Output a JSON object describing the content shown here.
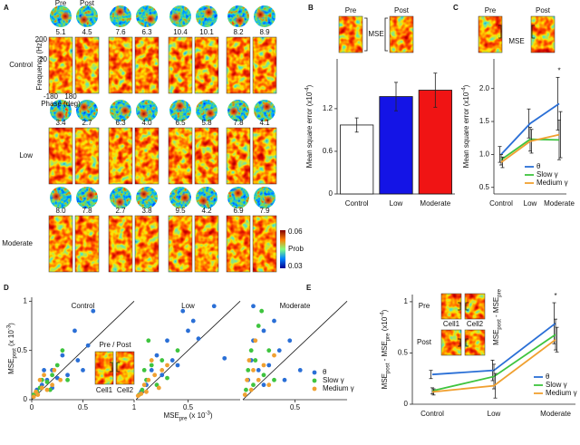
{
  "panel_labels": [
    "A",
    "B",
    "C",
    "D",
    "E"
  ],
  "panel_a": {
    "columns": [
      "Pre",
      "Post"
    ],
    "rows": [
      {
        "label": "Control",
        "values": [
          "5.1",
          "4.5",
          "7.6",
          "6.3",
          "10.4",
          "10.1",
          "8.2",
          "8.9"
        ]
      },
      {
        "label": "Low",
        "values": [
          "3.4",
          "2.7",
          "6.3",
          "4.0",
          "6.5",
          "5.8",
          "7.8",
          "4.1"
        ]
      },
      {
        "label": "Moderate",
        "values": [
          "8.0",
          "7.8",
          "2.7",
          "3.8",
          "9.5",
          "4.2",
          "6.9",
          "7.9"
        ]
      }
    ],
    "ylabel": "Frequency (Hz)",
    "yticks": [
      "200",
      "20"
    ],
    "xlabel": "Phase (deg)",
    "xticks": [
      "-180",
      "180"
    ],
    "colorbar": {
      "max": "0.06",
      "label": "Prob",
      "min": "0.03"
    }
  },
  "chart_data": [
    {
      "type": "bar",
      "categories": [
        "Control",
        "Low",
        "Moderate"
      ],
      "values": [
        0.97,
        1.37,
        1.46
      ],
      "errors": [
        0.1,
        0.2,
        0.24
      ],
      "colors": [
        "#ffffff",
        "#1414e6",
        "#f01414"
      ],
      "ylim": [
        0,
        1.9
      ],
      "yticks": [
        0,
        0.6,
        1.2
      ],
      "ylabel": [
        {
          "text": "Mean square error (x10"
        },
        {
          "sup": "-4"
        },
        {
          "text": ")"
        }
      ],
      "inset": {
        "labels": [
          "Pre",
          "Post"
        ],
        "bracket": "MSE"
      }
    },
    {
      "type": "line",
      "categories": [
        "Control",
        "Low",
        "Moderate"
      ],
      "series": [
        {
          "name": "θ",
          "color": "#2a6fd6",
          "values": [
            1.0,
            1.47,
            1.77
          ],
          "errors": [
            0.12,
            0.22,
            0.4
          ]
        },
        {
          "name": "Slow γ",
          "color": "#3ec43e",
          "values": [
            0.92,
            1.23,
            1.22
          ],
          "errors": [
            0.08,
            0.18,
            0.3
          ]
        },
        {
          "name": "Medium γ",
          "color": "#f0a030",
          "values": [
            0.88,
            1.2,
            1.3
          ],
          "errors": [
            0.08,
            0.18,
            0.35
          ]
        }
      ],
      "ylim": [
        0.4,
        2.45
      ],
      "yticks": [
        0.5,
        {
          "value": 1,
          "label": "1.0"
        },
        1.5,
        {
          "value": 2,
          "label": "2.0"
        }
      ],
      "ylabel": [
        {
          "text": "Mean square error (x10"
        },
        {
          "sup": "-4"
        },
        {
          "text": ")"
        }
      ],
      "annotation": "*",
      "legend": "lower right",
      "inset": {
        "labels": [
          "Pre",
          "Post"
        ],
        "bracket": "MSE"
      }
    },
    {
      "type": "scatter",
      "title": "Control",
      "series": [
        {
          "color": "#2a6fd6",
          "x": [
            0.05,
            0.1,
            0.15,
            0.2,
            0.25,
            0.3,
            0.35,
            0.45,
            0.5,
            0.6,
            0.42,
            0.85,
            0.55,
            0.2,
            0.12
          ],
          "values": [
            0.1,
            0.15,
            0.2,
            0.3,
            0.22,
            0.45,
            0.25,
            0.4,
            0.3,
            0.9,
            0.7,
            0.45,
            0.55,
            0.12,
            0.3
          ]
        },
        {
          "color": "#3ec43e",
          "x": [
            0.02,
            0.05,
            0.08,
            0.1,
            0.15,
            0.2,
            0.25,
            0.18,
            0.3,
            0.35
          ],
          "values": [
            0.05,
            0.08,
            0.12,
            0.2,
            0.18,
            0.25,
            0.35,
            0.1,
            0.5,
            0.2
          ]
        },
        {
          "color": "#f0a030",
          "x": [
            0.02,
            0.04,
            0.06,
            0.1,
            0.12,
            0.15,
            0.2,
            0.22,
            0.28,
            0.08
          ],
          "values": [
            0.03,
            0.08,
            0.05,
            0.12,
            0.25,
            0.1,
            0.15,
            0.3,
            0.2,
            0.2
          ]
        }
      ],
      "xlim": [
        0,
        1
      ],
      "ylim": [
        0,
        1.04
      ],
      "xticks": [
        0,
        0.5,
        1
      ],
      "yticks": [
        0,
        0.5,
        1
      ],
      "diagonal": true,
      "ylabel": [
        {
          "text": "MSE"
        },
        {
          "sub": "post"
        },
        {
          "text": " (x 10"
        },
        {
          "sup": "-3"
        },
        {
          "text": ")"
        }
      ],
      "inset": {
        "title": "Pre / Post",
        "labels": [
          "Cell1",
          "Cell2"
        ]
      }
    },
    {
      "type": "scatter",
      "title": "Low",
      "series": [
        {
          "color": "#2a6fd6",
          "x": [
            0.05,
            0.1,
            0.15,
            0.2,
            0.25,
            0.3,
            0.35,
            0.4,
            0.5,
            0.55,
            0.75,
            0.85,
            0.6,
            0.45
          ],
          "values": [
            0.08,
            0.15,
            0.3,
            0.45,
            0.25,
            0.6,
            0.4,
            0.35,
            0.7,
            0.8,
            0.95,
            0.42,
            0.62,
            0.9
          ]
        },
        {
          "color": "#3ec43e",
          "x": [
            0.03,
            0.06,
            0.1,
            0.15,
            0.2,
            0.25,
            0.3,
            0.12,
            0.4,
            0.08
          ],
          "values": [
            0.05,
            0.1,
            0.2,
            0.35,
            0.15,
            0.4,
            0.22,
            0.6,
            0.5,
            0.3
          ]
        },
        {
          "color": "#f0a030",
          "x": [
            0.02,
            0.05,
            0.08,
            0.1,
            0.12,
            0.18,
            0.22,
            0.25,
            0.3,
            0.15
          ],
          "values": [
            0.04,
            0.06,
            0.15,
            0.08,
            0.2,
            0.25,
            0.12,
            0.3,
            0.35,
            0.4
          ]
        }
      ],
      "xlim": [
        0,
        1
      ],
      "ylim": [
        0,
        1.04
      ],
      "xticks": [
        0.5
      ],
      "diagonal": true,
      "xlabel": [
        {
          "text": "MSE"
        },
        {
          "sub": "pre"
        },
        {
          "text": " (x 10"
        },
        {
          "sup": "-3"
        },
        {
          "text": ")"
        }
      ]
    },
    {
      "type": "scatter",
      "title": "Moderate",
      "series": [
        {
          "name": "θ",
          "color": "#2a6fd6",
          "x": [
            0.05,
            0.08,
            0.1,
            0.15,
            0.2,
            0.25,
            0.3,
            0.35,
            0.4,
            0.45,
            0.1,
            0.55,
            0.2
          ],
          "values": [
            0.2,
            0.4,
            0.6,
            0.3,
            0.7,
            0.35,
            0.8,
            0.5,
            0.2,
            0.6,
            0.95,
            0.3,
            0.15
          ]
        },
        {
          "name": "Slow γ",
          "color": "#3ec43e",
          "x": [
            0.03,
            0.05,
            0.08,
            0.1,
            0.12,
            0.15,
            0.2,
            0.25,
            0.3,
            0.18
          ],
          "values": [
            0.1,
            0.3,
            0.5,
            0.15,
            0.4,
            0.75,
            0.25,
            0.5,
            0.2,
            0.9
          ]
        },
        {
          "name": "Medium γ",
          "color": "#f0a030",
          "x": [
            0.02,
            0.04,
            0.06,
            0.08,
            0.1,
            0.12,
            0.15,
            0.2,
            0.25,
            0.3
          ],
          "values": [
            0.05,
            0.2,
            0.4,
            0.1,
            0.3,
            0.6,
            0.2,
            0.35,
            0.15,
            0.45
          ]
        }
      ],
      "xlim": [
        0,
        1
      ],
      "ylim": [
        0,
        1.04
      ],
      "xticks": [
        0.5
      ],
      "diagonal": true,
      "legend": "lower right"
    },
    {
      "type": "line",
      "categories": [
        "Control",
        "Low",
        "Moderate"
      ],
      "series": [
        {
          "name": "θ",
          "color": "#2a6fd6",
          "values": [
            0.29,
            0.33,
            0.79
          ],
          "errors": [
            0.04,
            0.1,
            0.2
          ]
        },
        {
          "name": "Slow γ",
          "color": "#3ec43e",
          "values": [
            0.13,
            0.27,
            0.68
          ],
          "errors": [
            0.03,
            0.12,
            0.15
          ]
        },
        {
          "name": "Medium γ",
          "color": "#f0a030",
          "values": [
            0.12,
            0.18,
            0.63
          ],
          "errors": [
            0.03,
            0.12,
            0.12
          ]
        }
      ],
      "ylim": [
        0,
        1.07
      ],
      "yticks": [
        0,
        0.5,
        1
      ],
      "ylabel": [
        {
          "text": "MSE"
        },
        {
          "sub": "post"
        },
        {
          "text": " - MSE"
        },
        {
          "sub": "pre"
        },
        {
          "text": " (x10"
        },
        {
          "sup": "-4"
        },
        {
          "text": ")"
        }
      ],
      "annotation": "*",
      "legend": "lower right",
      "inset": {
        "rows": [
          "Pre",
          "Post"
        ],
        "labels": [
          "Cell1",
          "Cell2"
        ],
        "ylabel": [
          {
            "text": "MSE"
          },
          {
            "sub": "post"
          },
          {
            "text": " - MSE"
          },
          {
            "sub": "pre"
          }
        ]
      }
    }
  ]
}
